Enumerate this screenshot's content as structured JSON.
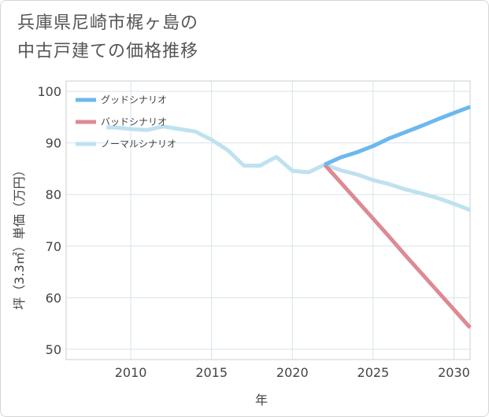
{
  "title_lines": [
    "兵庫県尼崎市梶ヶ島の",
    "中古戸建ての価格推移"
  ],
  "chart_data": {
    "type": "line",
    "title": "兵庫県尼崎市梶ヶ島の中古戸建ての価格推移",
    "xlabel": "年",
    "ylabel": "坪（3.3㎡）単価（万円）",
    "xlim": [
      2006,
      2031
    ],
    "ylim": [
      48,
      102
    ],
    "x_ticks": [
      2010,
      2015,
      2020,
      2025,
      2030
    ],
    "y_ticks": [
      50,
      60,
      70,
      80,
      90,
      100
    ],
    "grid": true,
    "legend_position": "top-left",
    "series": [
      {
        "name": "グッドシナリオ",
        "color": "#6cb8ee",
        "x": [
          2022,
          2023,
          2024,
          2025,
          2026,
          2027,
          2028,
          2029,
          2030,
          2031
        ],
        "y": [
          85.8,
          87.2,
          88.2,
          89.4,
          90.9,
          92.1,
          93.3,
          94.6,
          95.8,
          97.0
        ]
      },
      {
        "name": "バッドシナリオ",
        "color": "#dc8a93",
        "x": [
          2022,
          2023,
          2024,
          2025,
          2026,
          2027,
          2028,
          2029,
          2030,
          2031
        ],
        "y": [
          85.8,
          82.3,
          78.8,
          75.3,
          71.8,
          68.2,
          64.7,
          61.2,
          57.7,
          54.2
        ]
      },
      {
        "name": "ノーマルシナリオ",
        "color": "#bfe1f0",
        "x": [
          2008.5,
          2009,
          2010,
          2011,
          2012,
          2013,
          2014,
          2015,
          2016,
          2017,
          2018,
          2019,
          2020,
          2021,
          2022,
          2023,
          2024,
          2025,
          2026,
          2027,
          2028,
          2029,
          2030,
          2031
        ],
        "y": [
          93.0,
          93.0,
          92.7,
          92.5,
          93.2,
          92.7,
          92.2,
          90.6,
          88.6,
          85.6,
          85.6,
          87.3,
          84.6,
          84.3,
          85.8,
          84.7,
          83.9,
          82.8,
          82.0,
          81.0,
          80.2,
          79.3,
          78.2,
          77.0
        ]
      }
    ]
  }
}
